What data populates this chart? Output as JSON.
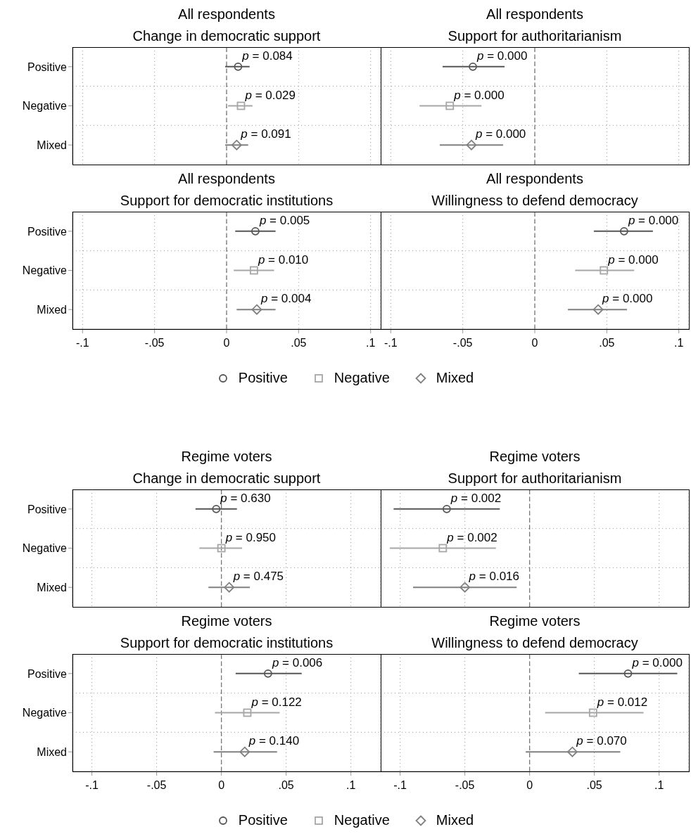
{
  "chart_data": [
    {
      "type": "scatter",
      "orientation": "horizontal",
      "title": "All respondents",
      "subtitle": "Change in democratic support",
      "categories": [
        "Positive",
        "Negative",
        "Mixed"
      ],
      "xlim": [
        -0.107,
        0.107
      ],
      "xticks": [
        -0.1,
        -0.05,
        0,
        0.05,
        0.1
      ],
      "grid": true,
      "tick_labels": "y",
      "ref_lines": [
        {
          "axis": "x",
          "value": 0,
          "line_style": "dashed",
          "color": "#777777"
        }
      ],
      "annotations": [
        {
          "text": "p = 0.084",
          "x": 0.008,
          "y": "Positive"
        },
        {
          "text": "p = 0.029",
          "x": 0.01,
          "y": "Negative"
        },
        {
          "text": "p = 0.091",
          "x": 0.007,
          "y": "Mixed"
        }
      ],
      "series": [
        {
          "color": "#555555",
          "marker": "circle",
          "values": [
            0.008,
            null,
            null
          ],
          "errors": [
            [
              -0.001,
              0.016
            ],
            null,
            null
          ]
        },
        {
          "color": "#a6a6a6",
          "marker": "square",
          "values": [
            null,
            0.01,
            null
          ],
          "errors": [
            null,
            [
              0.001,
              0.018
            ],
            null
          ]
        },
        {
          "color": "#808080",
          "marker": "diamond",
          "values": [
            null,
            null,
            0.007
          ],
          "errors": [
            null,
            null,
            [
              -0.001,
              0.015
            ]
          ]
        }
      ]
    },
    {
      "type": "scatter",
      "orientation": "horizontal",
      "title": "All respondents",
      "subtitle": "Support for authoritarianism",
      "categories": [
        "Positive",
        "Negative",
        "Mixed"
      ],
      "xlim": [
        -0.107,
        0.107
      ],
      "xticks": [
        -0.1,
        -0.05,
        0,
        0.05,
        0.1
      ],
      "grid": true,
      "tick_labels": false,
      "ref_lines": [
        {
          "axis": "x",
          "value": 0,
          "line_style": "dashed",
          "color": "#777777"
        }
      ],
      "annotations": [
        {
          "text": "p = 0.000",
          "x": -0.043,
          "y": "Positive"
        },
        {
          "text": "p = 0.000",
          "x": -0.059,
          "y": "Negative"
        },
        {
          "text": "p = 0.000",
          "x": -0.044,
          "y": "Mixed"
        }
      ],
      "series": [
        {
          "color": "#555555",
          "marker": "circle",
          "values": [
            -0.043,
            null,
            null
          ],
          "errors": [
            [
              -0.064,
              -0.021
            ],
            null,
            null
          ]
        },
        {
          "color": "#a6a6a6",
          "marker": "square",
          "values": [
            null,
            -0.059,
            null
          ],
          "errors": [
            null,
            [
              -0.08,
              -0.037
            ],
            null
          ]
        },
        {
          "color": "#808080",
          "marker": "diamond",
          "values": [
            null,
            null,
            -0.044
          ],
          "errors": [
            null,
            null,
            [
              -0.066,
              -0.022
            ]
          ]
        }
      ]
    },
    {
      "type": "scatter",
      "orientation": "horizontal",
      "title": "All respondents",
      "subtitle": "Support for democratic institutions",
      "categories": [
        "Positive",
        "Negative",
        "Mixed"
      ],
      "xlim": [
        -0.107,
        0.107
      ],
      "xticks": [
        {
          "value": -0.1,
          "label": "-.1"
        },
        {
          "value": -0.05,
          "label": "-.05"
        },
        0,
        {
          "value": 0.05,
          "label": ".05"
        },
        {
          "value": 0.1,
          "label": ".1"
        }
      ],
      "grid": true,
      "legend": "bottom",
      "ref_lines": [
        {
          "axis": "x",
          "value": 0,
          "line_style": "dashed",
          "color": "#777777"
        }
      ],
      "annotations": [
        {
          "text": "p = 0.005",
          "x": 0.02,
          "y": "Positive"
        },
        {
          "text": "p = 0.010",
          "x": 0.019,
          "y": "Negative"
        },
        {
          "text": "p = 0.004",
          "x": 0.021,
          "y": "Mixed"
        }
      ],
      "series": [
        {
          "name": "Positive",
          "color": "#555555",
          "marker": "circle",
          "values": [
            0.02,
            null,
            null
          ],
          "errors": [
            [
              0.006,
              0.034
            ],
            null,
            null
          ]
        },
        {
          "name": "Negative",
          "color": "#a6a6a6",
          "marker": "square",
          "values": [
            null,
            0.019,
            null
          ],
          "errors": [
            null,
            [
              0.005,
              0.033
            ],
            null
          ]
        },
        {
          "name": "Mixed",
          "color": "#808080",
          "marker": "diamond",
          "values": [
            null,
            null,
            0.021
          ],
          "errors": [
            null,
            null,
            [
              0.007,
              0.034
            ]
          ]
        }
      ]
    },
    {
      "type": "scatter",
      "orientation": "horizontal",
      "title": "All respondents",
      "subtitle": "Willingness to defend democracy",
      "categories": [
        "Positive",
        "Negative",
        "Mixed"
      ],
      "xlim": [
        -0.107,
        0.107
      ],
      "xticks": [
        {
          "value": -0.1,
          "label": "-.1"
        },
        {
          "value": -0.05,
          "label": "-.05"
        },
        0,
        {
          "value": 0.05,
          "label": ".05"
        },
        {
          "value": 0.1,
          "label": ".1"
        }
      ],
      "grid": true,
      "tick_labels": "x",
      "ref_lines": [
        {
          "axis": "x",
          "value": 0,
          "line_style": "dashed",
          "color": "#777777"
        }
      ],
      "annotations": [
        {
          "text": "p = 0.000",
          "x": 0.062,
          "y": "Positive"
        },
        {
          "text": "p = 0.000",
          "x": 0.048,
          "y": "Negative"
        },
        {
          "text": "p = 0.000",
          "x": 0.044,
          "y": "Mixed"
        }
      ],
      "series": [
        {
          "color": "#555555",
          "marker": "circle",
          "values": [
            0.062,
            null,
            null
          ],
          "errors": [
            [
              0.041,
              0.082
            ],
            null,
            null
          ]
        },
        {
          "color": "#a6a6a6",
          "marker": "square",
          "values": [
            null,
            0.048,
            null
          ],
          "errors": [
            null,
            [
              0.028,
              0.069
            ],
            null
          ]
        },
        {
          "color": "#808080",
          "marker": "diamond",
          "values": [
            null,
            null,
            0.044
          ],
          "errors": [
            null,
            null,
            [
              0.023,
              0.064
            ]
          ]
        }
      ]
    },
    {
      "type": "scatter",
      "orientation": "horizontal",
      "title": "Regime voters",
      "subtitle": "Change in democratic support",
      "categories": [
        "Positive",
        "Negative",
        "Mixed"
      ],
      "xlim": [
        -0.115,
        0.123
      ],
      "xticks": [
        -0.1,
        -0.05,
        0,
        0.05,
        0.1
      ],
      "grid": true,
      "tick_labels": "y",
      "ref_lines": [
        {
          "axis": "x",
          "value": 0,
          "line_style": "dashed",
          "color": "#777777"
        }
      ],
      "annotations": [
        {
          "text": "p = 0.630",
          "x": -0.004,
          "y": "Positive"
        },
        {
          "text": "p = 0.950",
          "x": 0,
          "y": "Negative"
        },
        {
          "text": "p = 0.475",
          "x": 0.006,
          "y": "Mixed"
        }
      ],
      "series": [
        {
          "color": "#555555",
          "marker": "circle",
          "values": [
            -0.004,
            null,
            null
          ],
          "errors": [
            [
              -0.02,
              0.012
            ],
            null,
            null
          ]
        },
        {
          "color": "#a6a6a6",
          "marker": "square",
          "values": [
            null,
            0,
            null
          ],
          "errors": [
            null,
            [
              -0.017,
              0.016
            ],
            null
          ]
        },
        {
          "color": "#808080",
          "marker": "diamond",
          "values": [
            null,
            null,
            0.006
          ],
          "errors": [
            null,
            null,
            [
              -0.01,
              0.022
            ]
          ]
        }
      ]
    },
    {
      "type": "scatter",
      "orientation": "horizontal",
      "title": "Regime voters",
      "subtitle": "Support for authoritarianism",
      "categories": [
        "Positive",
        "Negative",
        "Mixed"
      ],
      "xlim": [
        -0.115,
        0.123
      ],
      "xticks": [
        -0.1,
        -0.05,
        0,
        0.05,
        0.1
      ],
      "grid": true,
      "tick_labels": false,
      "ref_lines": [
        {
          "axis": "x",
          "value": 0,
          "line_style": "dashed",
          "color": "#777777"
        }
      ],
      "annotations": [
        {
          "text": "p = 0.002",
          "x": -0.064,
          "y": "Positive"
        },
        {
          "text": "p = 0.002",
          "x": -0.067,
          "y": "Negative"
        },
        {
          "text": "p = 0.016",
          "x": -0.05,
          "y": "Mixed"
        }
      ],
      "series": [
        {
          "color": "#555555",
          "marker": "circle",
          "values": [
            -0.064,
            null,
            null
          ],
          "errors": [
            [
              -0.105,
              -0.023
            ],
            null,
            null
          ]
        },
        {
          "color": "#a6a6a6",
          "marker": "square",
          "values": [
            null,
            -0.067,
            null
          ],
          "errors": [
            null,
            [
              -0.108,
              -0.026
            ],
            null
          ]
        },
        {
          "color": "#808080",
          "marker": "diamond",
          "values": [
            null,
            null,
            -0.05
          ],
          "errors": [
            null,
            null,
            [
              -0.09,
              -0.01
            ]
          ]
        }
      ]
    },
    {
      "type": "scatter",
      "orientation": "horizontal",
      "title": "Regime voters",
      "subtitle": "Support for democratic institutions",
      "categories": [
        "Positive",
        "Negative",
        "Mixed"
      ],
      "xlim": [
        -0.115,
        0.123
      ],
      "xticks": [
        {
          "value": -0.1,
          "label": "-.1"
        },
        {
          "value": -0.05,
          "label": "-.05"
        },
        0,
        {
          "value": 0.05,
          "label": ".05"
        },
        {
          "value": 0.1,
          "label": ".1"
        }
      ],
      "grid": true,
      "legend": "bottom",
      "ref_lines": [
        {
          "axis": "x",
          "value": 0,
          "line_style": "dashed",
          "color": "#777777"
        }
      ],
      "annotations": [
        {
          "text": "p = 0.006",
          "x": 0.036,
          "y": "Positive"
        },
        {
          "text": "p = 0.122",
          "x": 0.02,
          "y": "Negative"
        },
        {
          "text": "p = 0.140",
          "x": 0.018,
          "y": "Mixed"
        }
      ],
      "series": [
        {
          "name": "Positive",
          "color": "#555555",
          "marker": "circle",
          "values": [
            0.036,
            null,
            null
          ],
          "errors": [
            [
              0.011,
              0.062
            ],
            null,
            null
          ]
        },
        {
          "name": "Negative",
          "color": "#a6a6a6",
          "marker": "square",
          "values": [
            null,
            0.02,
            null
          ],
          "errors": [
            null,
            [
              -0.005,
              0.045
            ],
            null
          ]
        },
        {
          "name": "Mixed",
          "color": "#808080",
          "marker": "diamond",
          "values": [
            null,
            null,
            0.018
          ],
          "errors": [
            null,
            null,
            [
              -0.006,
              0.043
            ]
          ]
        }
      ]
    },
    {
      "type": "scatter",
      "orientation": "horizontal",
      "title": "Regime voters",
      "subtitle": "Willingness to defend democracy",
      "categories": [
        "Positive",
        "Negative",
        "Mixed"
      ],
      "xlim": [
        -0.115,
        0.123
      ],
      "xticks": [
        {
          "value": -0.1,
          "label": "-.1"
        },
        {
          "value": -0.05,
          "label": "-.05"
        },
        0,
        {
          "value": 0.05,
          "label": ".05"
        },
        {
          "value": 0.1,
          "label": ".1"
        }
      ],
      "grid": true,
      "tick_labels": "x",
      "ref_lines": [
        {
          "axis": "x",
          "value": 0,
          "line_style": "dashed",
          "color": "#777777"
        }
      ],
      "annotations": [
        {
          "text": "p = 0.000",
          "x": 0.076,
          "y": "Positive"
        },
        {
          "text": "p = 0.012",
          "x": 0.049,
          "y": "Negative"
        },
        {
          "text": "p = 0.070",
          "x": 0.033,
          "y": "Mixed"
        }
      ],
      "series": [
        {
          "color": "#555555",
          "marker": "circle",
          "values": [
            0.076,
            null,
            null
          ],
          "errors": [
            [
              0.038,
              0.114
            ],
            null,
            null
          ]
        },
        {
          "color": "#a6a6a6",
          "marker": "square",
          "values": [
            null,
            0.049,
            null
          ],
          "errors": [
            null,
            [
              0.012,
              0.088
            ],
            null
          ]
        },
        {
          "color": "#808080",
          "marker": "diamond",
          "values": [
            null,
            null,
            0.033
          ],
          "errors": [
            null,
            null,
            [
              -0.003,
              0.07
            ]
          ]
        }
      ]
    }
  ]
}
